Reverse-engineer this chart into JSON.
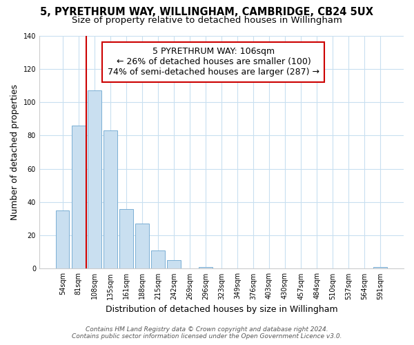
{
  "title": "5, PYRETHRUM WAY, WILLINGHAM, CAMBRIDGE, CB24 5UX",
  "subtitle": "Size of property relative to detached houses in Willingham",
  "xlabel": "Distribution of detached houses by size in Willingham",
  "ylabel": "Number of detached properties",
  "bar_labels": [
    "54sqm",
    "81sqm",
    "108sqm",
    "135sqm",
    "161sqm",
    "188sqm",
    "215sqm",
    "242sqm",
    "269sqm",
    "296sqm",
    "323sqm",
    "349sqm",
    "376sqm",
    "403sqm",
    "430sqm",
    "457sqm",
    "484sqm",
    "510sqm",
    "537sqm",
    "564sqm",
    "591sqm"
  ],
  "bar_values": [
    35,
    86,
    107,
    83,
    36,
    27,
    11,
    5,
    0,
    1,
    0,
    0,
    0,
    0,
    0,
    0,
    0,
    0,
    0,
    0,
    1
  ],
  "bar_color": "#c9dff0",
  "bar_edgecolor": "#7aafd4",
  "vline_x_index": 2,
  "vline_color": "#cc0000",
  "ylim": [
    0,
    140
  ],
  "yticks": [
    0,
    20,
    40,
    60,
    80,
    100,
    120,
    140
  ],
  "annotation_title": "5 PYRETHRUM WAY: 106sqm",
  "annotation_line1": "← 26% of detached houses are smaller (100)",
  "annotation_line2": "74% of semi-detached houses are larger (287) →",
  "annotation_box_facecolor": "#ffffff",
  "annotation_box_edgecolor": "#cc0000",
  "footer_line1": "Contains HM Land Registry data © Crown copyright and database right 2024.",
  "footer_line2": "Contains public sector information licensed under the Open Government Licence v3.0.",
  "background_color": "#ffffff",
  "grid_color": "#c8dff0",
  "title_fontsize": 10.5,
  "subtitle_fontsize": 9.5,
  "axis_label_fontsize": 9,
  "tick_fontsize": 7,
  "annotation_fontsize": 9,
  "footer_fontsize": 6.5
}
